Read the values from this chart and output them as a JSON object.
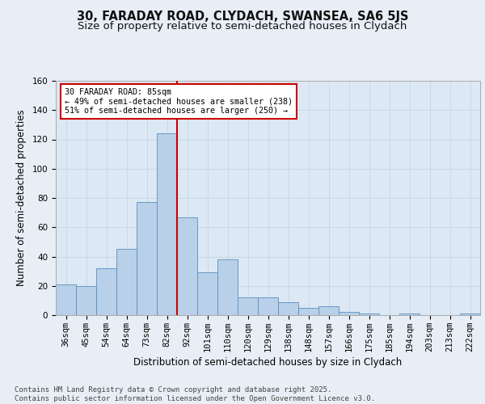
{
  "title_line1": "30, FARADAY ROAD, CLYDACH, SWANSEA, SA6 5JS",
  "title_line2": "Size of property relative to semi-detached houses in Clydach",
  "xlabel": "Distribution of semi-detached houses by size in Clydach",
  "ylabel": "Number of semi-detached properties",
  "categories": [
    "36sqm",
    "45sqm",
    "54sqm",
    "64sqm",
    "73sqm",
    "82sqm",
    "92sqm",
    "101sqm",
    "110sqm",
    "120sqm",
    "129sqm",
    "138sqm",
    "148sqm",
    "157sqm",
    "166sqm",
    "175sqm",
    "185sqm",
    "194sqm",
    "203sqm",
    "213sqm",
    "222sqm"
  ],
  "values": [
    21,
    20,
    32,
    45,
    77,
    124,
    67,
    29,
    38,
    12,
    12,
    9,
    5,
    6,
    2,
    1,
    0,
    1,
    0,
    0,
    1
  ],
  "bar_color": "#b8d0e8",
  "bar_edge_color": "#5a8fc0",
  "vline_x_index": 5,
  "vline_color": "#cc0000",
  "annotation_text": "30 FARADAY ROAD: 85sqm\n← 49% of semi-detached houses are smaller (238)\n51% of semi-detached houses are larger (250) →",
  "annotation_box_color": "#cc0000",
  "ylim": [
    0,
    160
  ],
  "yticks": [
    0,
    20,
    40,
    60,
    80,
    100,
    120,
    140,
    160
  ],
  "grid_color": "#c8d8e8",
  "background_color": "#e8eef5",
  "plot_bg_color": "#dce8f4",
  "footer": "Contains HM Land Registry data © Crown copyright and database right 2025.\nContains public sector information licensed under the Open Government Licence v3.0.",
  "title_fontsize": 10.5,
  "subtitle_fontsize": 9.5,
  "axis_label_fontsize": 8.5,
  "tick_fontsize": 7.5,
  "footer_fontsize": 6.5
}
